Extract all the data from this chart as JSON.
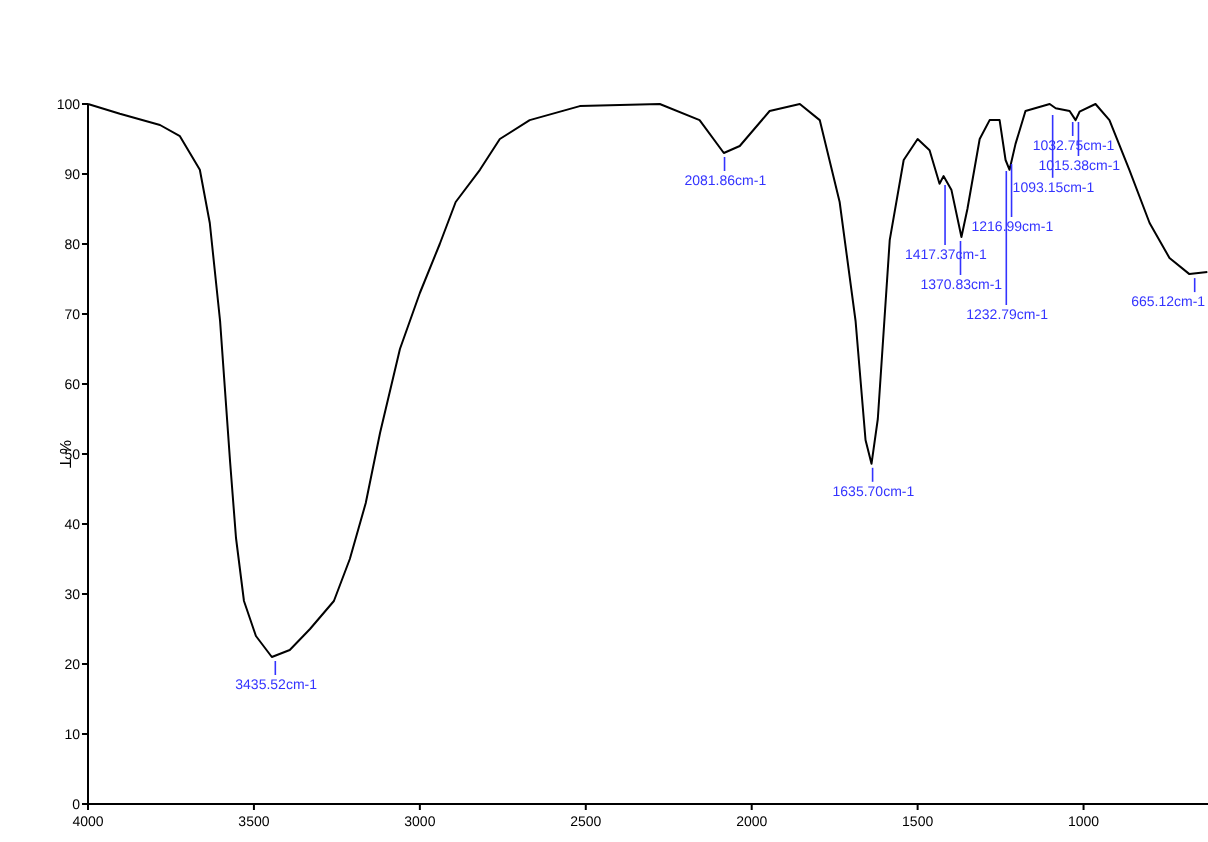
{
  "chart_data": {
    "type": "line",
    "ylabel": "% T",
    "xlim": [
      4000,
      625
    ],
    "ylim": [
      0,
      100
    ],
    "xticks": [
      4000,
      3500,
      3000,
      2500,
      2000,
      1500,
      1000
    ],
    "yticks": [
      0,
      10,
      20,
      30,
      40,
      50,
      60,
      70,
      80,
      90,
      100
    ],
    "grid": false,
    "marker": "none",
    "line_style": "solid",
    "series": [
      {
        "color": "#000000",
        "x": [
          4000,
          3904,
          3783,
          3723,
          3663,
          3633,
          3602,
          3572,
          3554,
          3530,
          3494,
          3446,
          3392,
          3331,
          3259,
          3211,
          3163,
          3120,
          3060,
          3000,
          2940,
          2892,
          2819,
          2759,
          2669,
          2518,
          2277,
          2157,
          2084,
          2036,
          1946,
          1855,
          1795,
          1735,
          1687,
          1657,
          1639,
          1620,
          1584,
          1542,
          1500,
          1464,
          1434,
          1422,
          1398,
          1368,
          1350,
          1313,
          1283,
          1253,
          1235,
          1223,
          1205,
          1175,
          1102,
          1084,
          1042,
          1024,
          1012,
          964,
          922,
          862,
          801,
          741,
          681,
          627
        ],
        "values": [
          100,
          98.6,
          97,
          95.4,
          90.6,
          83,
          69,
          49,
          38,
          29,
          24,
          21,
          22,
          25,
          29,
          35,
          43,
          53,
          65,
          73,
          80,
          86,
          90.6,
          95,
          97.7,
          99.7,
          100,
          97.7,
          93,
          94,
          99,
          100,
          97.7,
          86,
          69,
          52,
          48.6,
          55,
          80.6,
          92,
          95,
          93.4,
          88.6,
          89.7,
          87.7,
          81,
          85,
          95,
          97.7,
          97.7,
          92,
          90.6,
          94.3,
          99,
          100,
          99.4,
          99,
          97.7,
          98.9,
          100,
          97.7,
          90.6,
          83,
          78,
          75.7,
          76
        ]
      }
    ],
    "annotations": [
      {
        "text": "3435.52cm-1",
        "x": 3435.52,
        "y": 21
      },
      {
        "text": "2081.86cm-1",
        "x": 2081.86,
        "y": 93
      },
      {
        "text": "1635.70cm-1",
        "x": 1635.7,
        "y": 48.6
      },
      {
        "text": "1417.37cm-1",
        "x": 1417.37,
        "y": 89
      },
      {
        "text": "1370.83cm-1",
        "x": 1370.83,
        "y": 81
      },
      {
        "text": "1232.79cm-1",
        "x": 1232.79,
        "y": 91
      },
      {
        "text": "1216.99cm-1",
        "x": 1216.99,
        "y": 92
      },
      {
        "text": "1093.15cm-1",
        "x": 1093.15,
        "y": 99
      },
      {
        "text": "1015.38cm-1",
        "x": 1015.38,
        "y": 98
      },
      {
        "text": "1032.75cm-1",
        "x": 1032.75,
        "y": 98
      },
      {
        "text": "665.12cm-1",
        "x": 665.12,
        "y": 75.7
      }
    ]
  }
}
